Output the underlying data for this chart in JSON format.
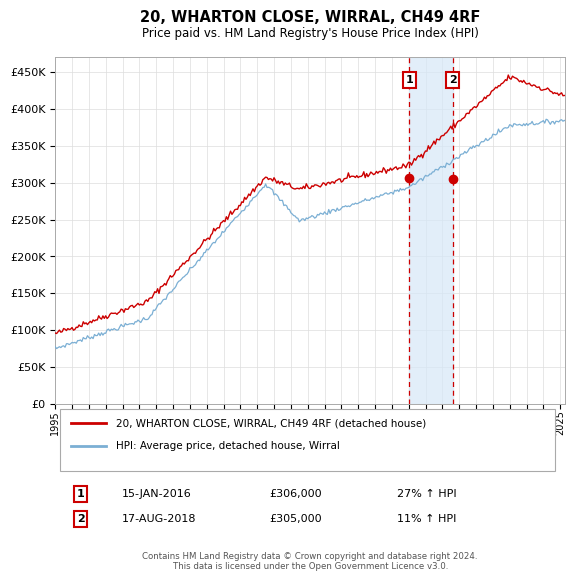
{
  "title": "20, WHARTON CLOSE, WIRRAL, CH49 4RF",
  "subtitle": "Price paid vs. HM Land Registry's House Price Index (HPI)",
  "ylabel_ticks": [
    "£0",
    "£50K",
    "£100K",
    "£150K",
    "£200K",
    "£250K",
    "£300K",
    "£350K",
    "£400K",
    "£450K"
  ],
  "ytick_vals": [
    0,
    50000,
    100000,
    150000,
    200000,
    250000,
    300000,
    350000,
    400000,
    450000
  ],
  "ylim": [
    0,
    470000
  ],
  "xlim_start": 1995,
  "xlim_end": 2025.3,
  "sale1_date": "15-JAN-2016",
  "sale1_price": 306000,
  "sale1_hpi_pct": "27%",
  "sale2_date": "17-AUG-2018",
  "sale2_price": 305000,
  "sale2_hpi_pct": "11%",
  "sale1_x": 2016.04,
  "sale2_x": 2018.62,
  "hpi_line_color": "#7bafd4",
  "price_line_color": "#cc0000",
  "sale_marker_color": "#cc0000",
  "vline_color": "#cc0000",
  "shade_color": "#d6e8f7",
  "legend_label1": "20, WHARTON CLOSE, WIRRAL, CH49 4RF (detached house)",
  "legend_label2": "HPI: Average price, detached house, Wirral",
  "footer": "Contains HM Land Registry data © Crown copyright and database right 2024.\nThis data is licensed under the Open Government Licence v3.0.",
  "background_color": "#ffffff",
  "grid_color": "#dddddd"
}
